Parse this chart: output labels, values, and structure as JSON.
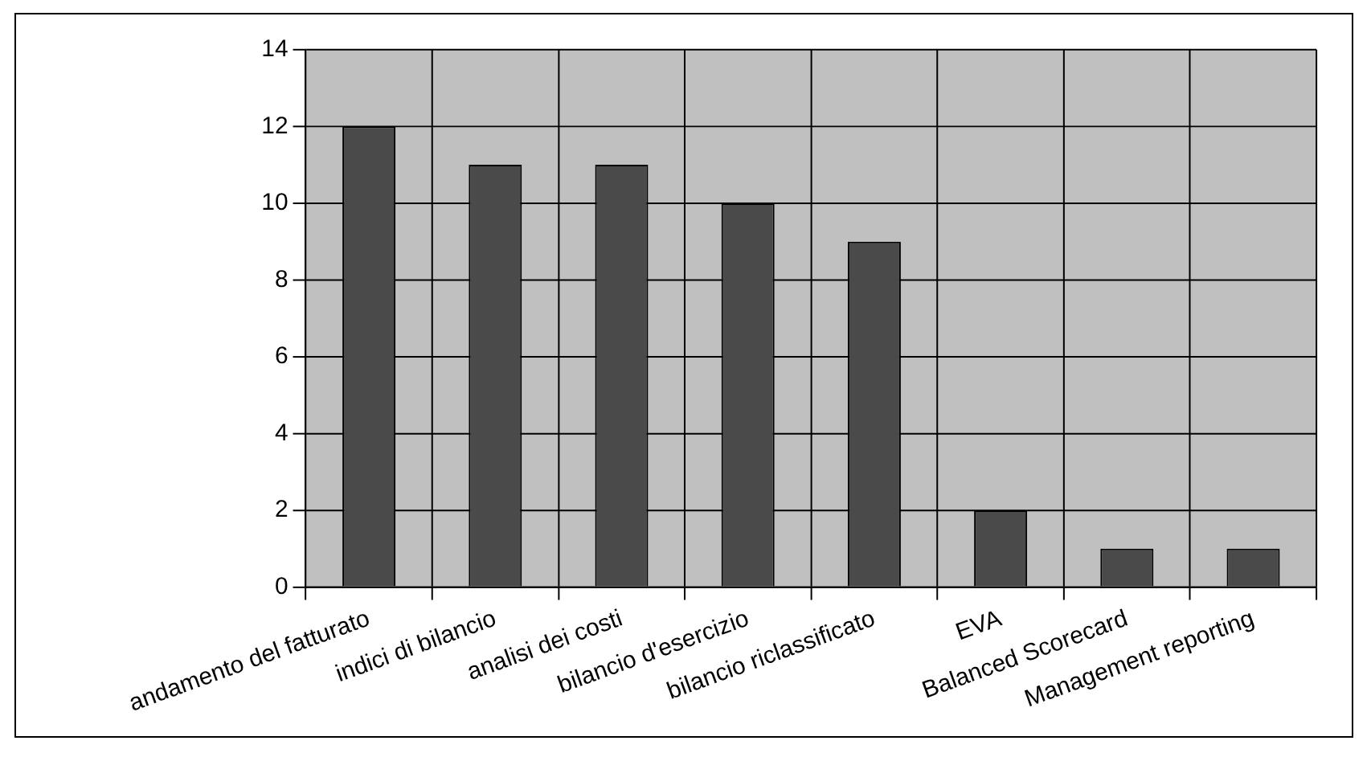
{
  "chart_data": {
    "type": "bar",
    "categories": [
      "andamento del fatturato",
      "indici di bilancio",
      "analisi dei costi",
      "bilancio d'esercizio",
      "bilancio riclassificato",
      "EVA",
      "Balanced Scorecard",
      "Management reporting"
    ],
    "values": [
      12,
      11,
      11,
      10,
      9,
      2,
      1,
      1
    ],
    "color": "#4a4a4a",
    "ylim": [
      0,
      14
    ],
    "yticks": [
      0,
      2,
      4,
      6,
      8,
      10,
      12,
      14
    ],
    "grid": true,
    "legend": false
  }
}
